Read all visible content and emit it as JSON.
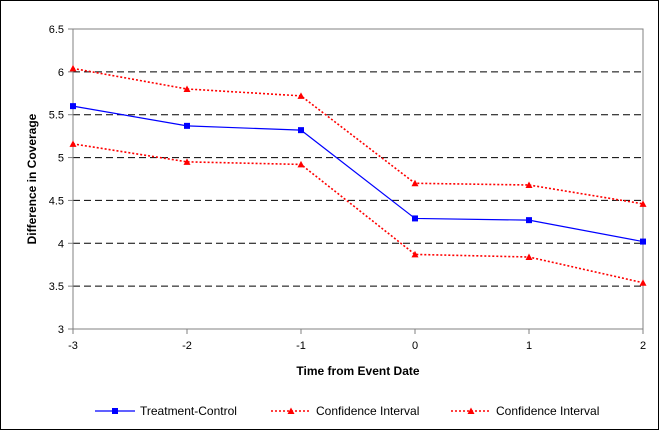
{
  "chart_data": {
    "type": "line",
    "xlabel": "Time from Event Date",
    "ylabel": "Difference in Coverage",
    "x": [
      -3,
      -2,
      -1,
      0,
      1,
      2
    ],
    "ylim": [
      3,
      6.5
    ],
    "yticks": [
      3,
      3.5,
      4,
      4.5,
      5,
      5.5,
      6,
      6.5
    ],
    "xticks": [
      -3,
      -2,
      -1,
      0,
      1,
      2
    ],
    "grid": "horizontal dashed",
    "legend_position": "bottom",
    "series": [
      {
        "name": "Treatment-Control",
        "values": [
          5.6,
          5.37,
          5.32,
          4.29,
          4.27,
          4.02
        ],
        "color": "#0000ff",
        "style": "solid",
        "marker": "square"
      },
      {
        "name": "Confidence Interval",
        "values": [
          6.04,
          5.8,
          5.72,
          4.7,
          4.68,
          4.46
        ],
        "color": "#ff0000",
        "style": "dotted",
        "marker": "triangle"
      },
      {
        "name": "Confidence Interval",
        "values": [
          5.16,
          4.95,
          4.92,
          3.87,
          3.84,
          3.54
        ],
        "color": "#ff0000",
        "style": "dotted",
        "marker": "triangle"
      }
    ]
  }
}
